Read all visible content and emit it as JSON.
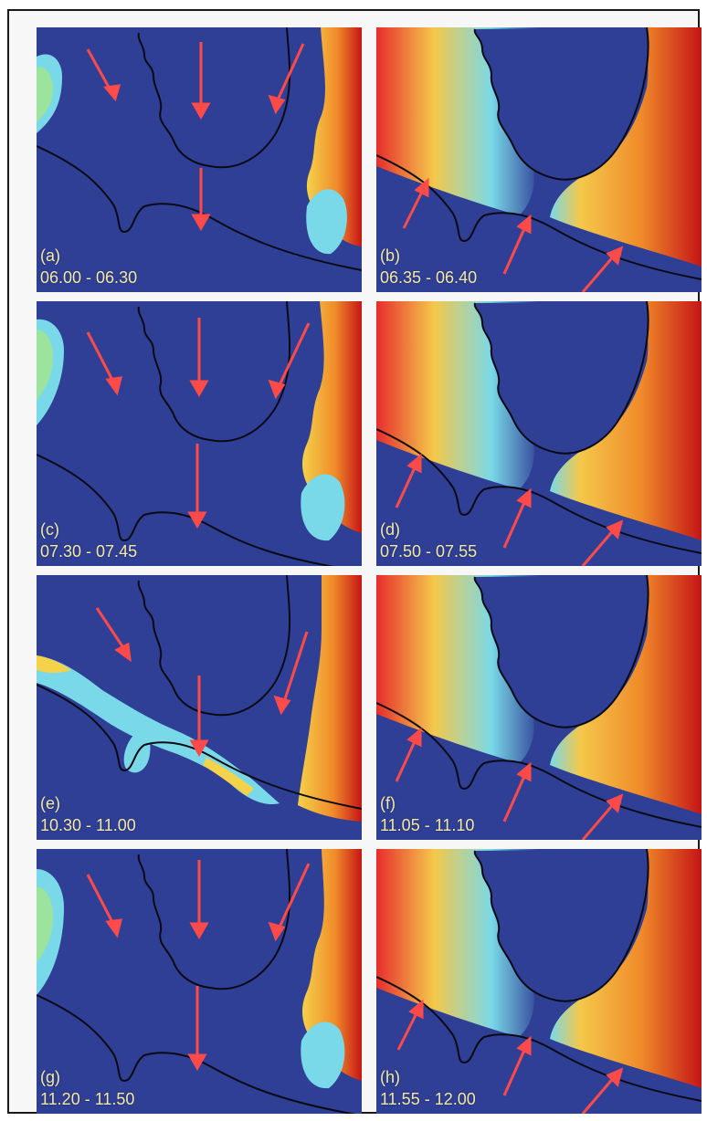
{
  "panels": [
    {
      "label": "(a)",
      "time": "06.00 - 06.30"
    },
    {
      "label": "(b)",
      "time": "06.35 - 06.40"
    },
    {
      "label": "(c)",
      "time": "07.30 - 07.45"
    },
    {
      "label": "(d)",
      "time": "07.50 - 07.55"
    },
    {
      "label": "(e)",
      "time": "10.30 - 11.00"
    },
    {
      "label": "(f)",
      "time": "11.05 - 11.10"
    },
    {
      "label": "(g)",
      "time": "11.20 - 11.50"
    },
    {
      "label": "(h)",
      "time": "11.55 - 12.00"
    }
  ],
  "colors": {
    "background": "#2f3f96",
    "arrow": "#ff4a4a",
    "label": "#f3e9a6",
    "warm": "#d81f1f",
    "mid": "#f4c84a",
    "cool": "#7ad9e8"
  }
}
